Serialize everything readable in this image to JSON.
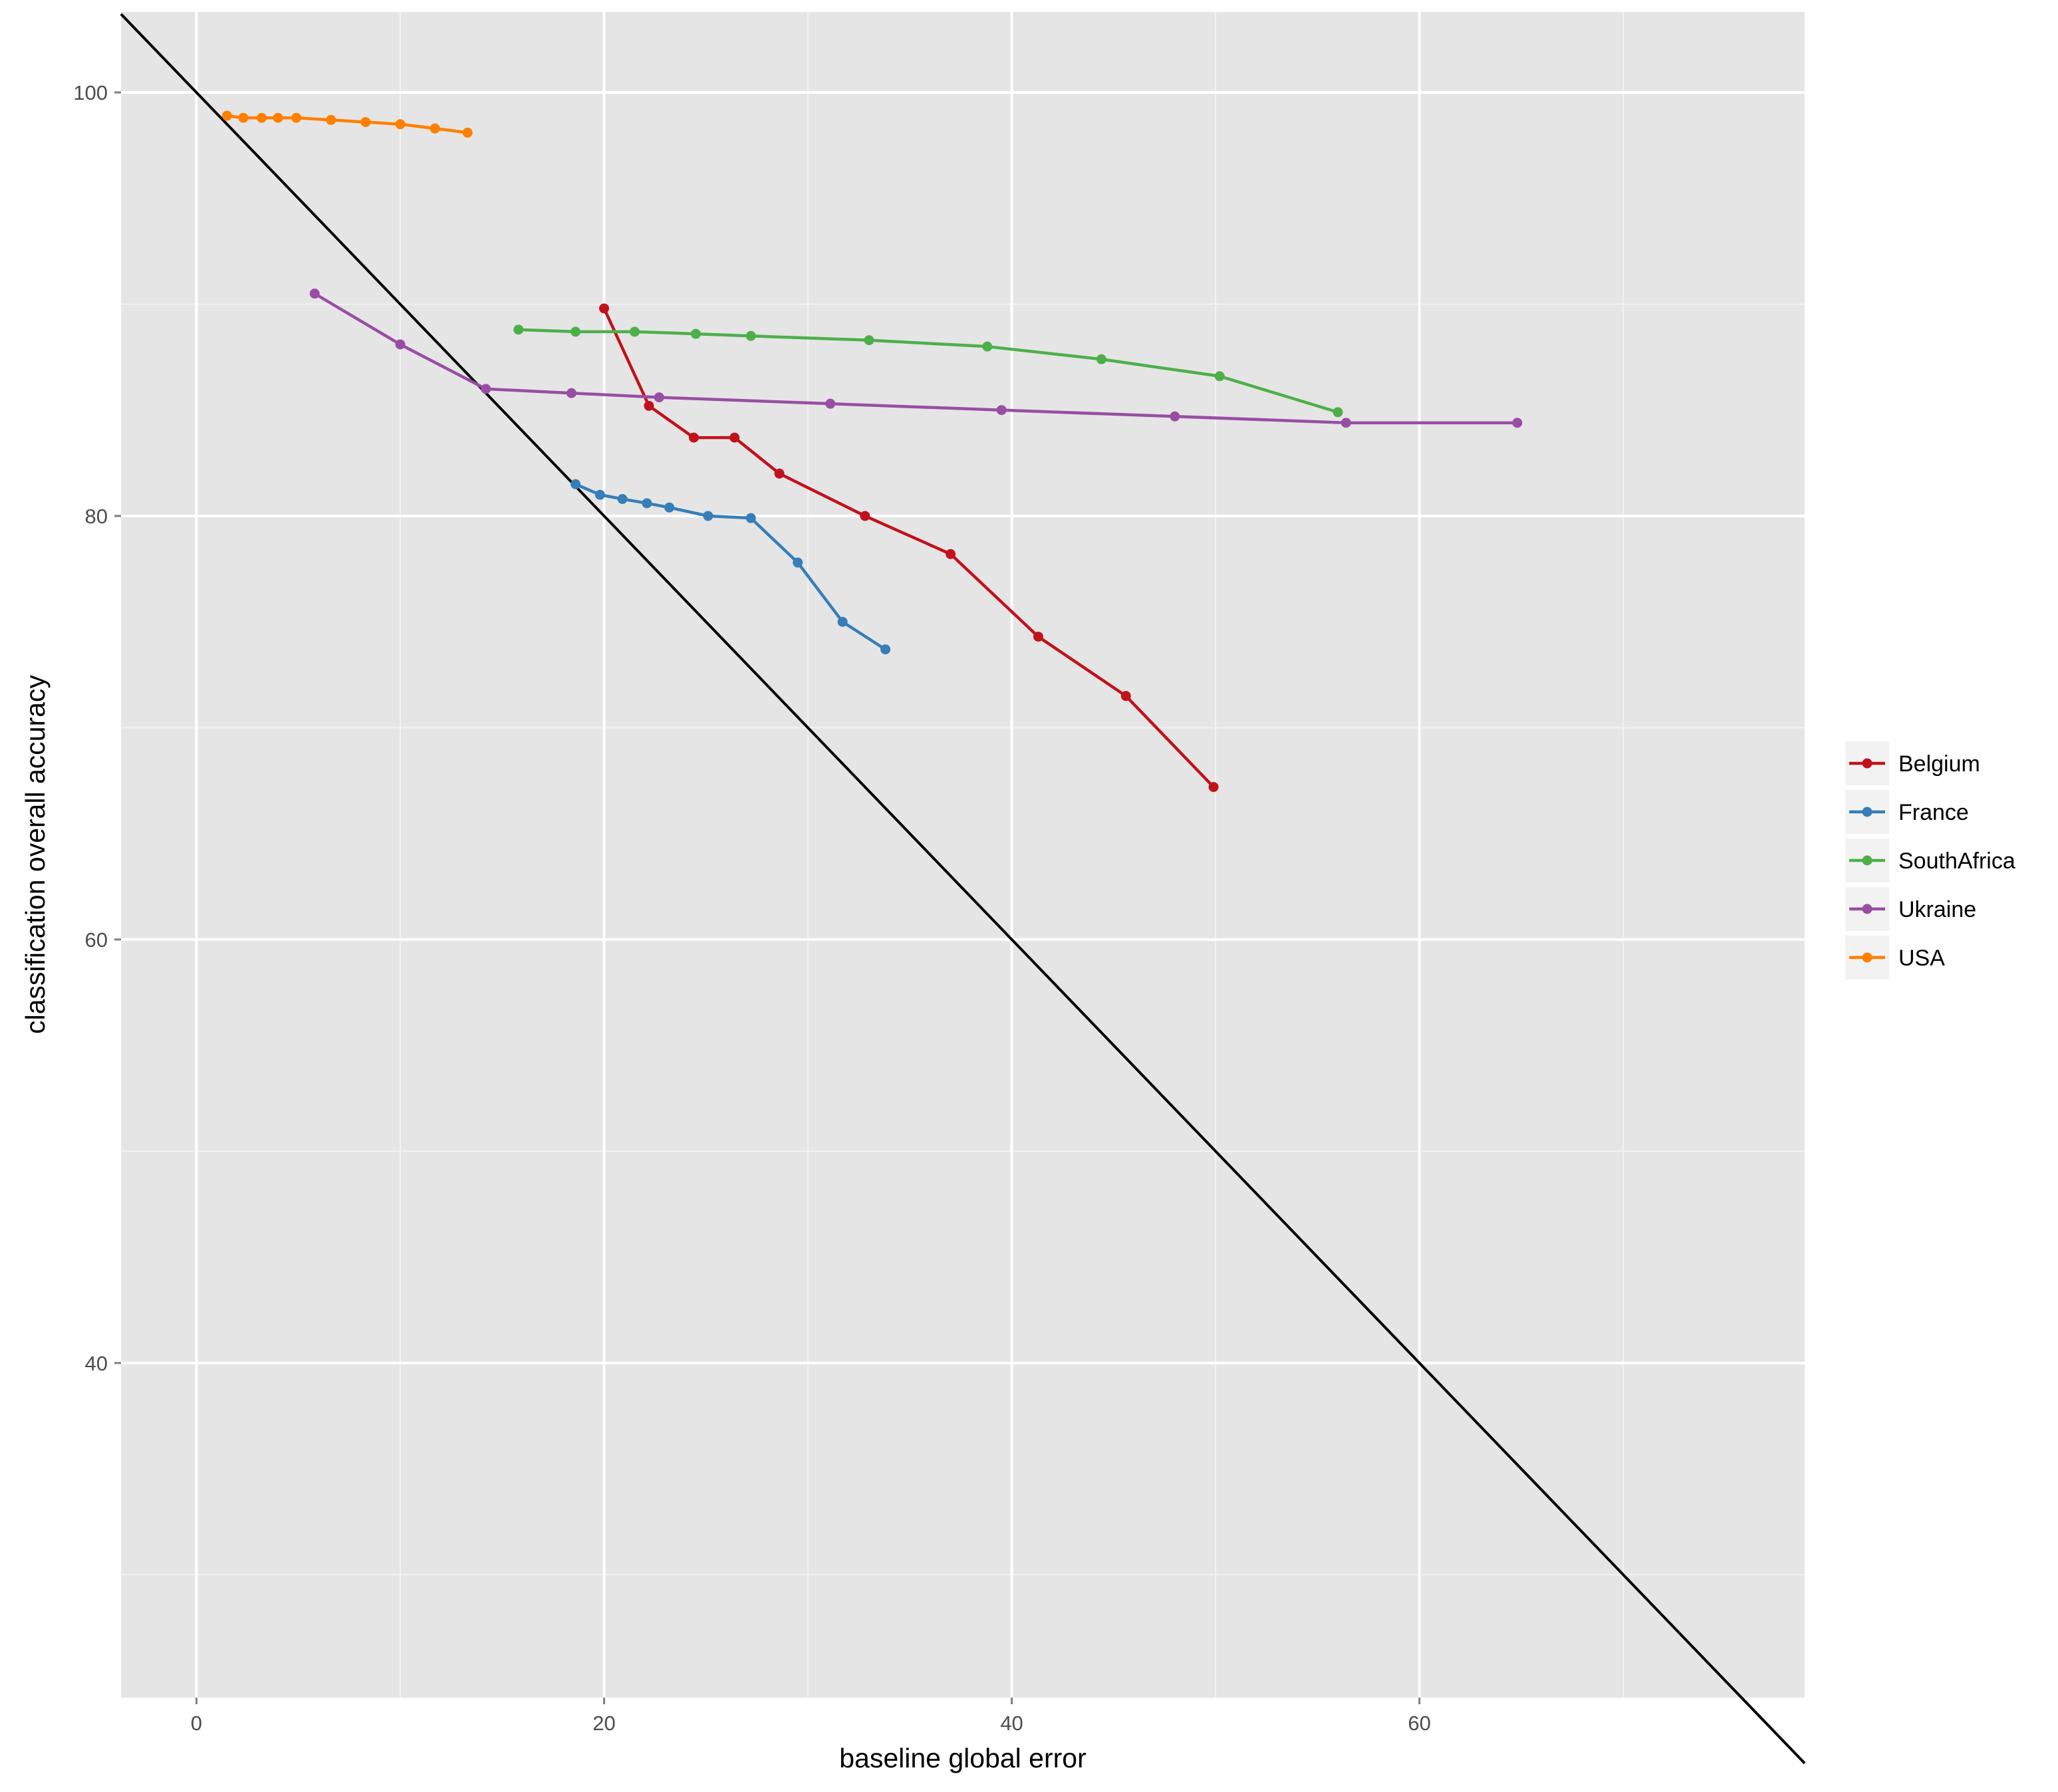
{
  "chart_data": {
    "type": "line",
    "xlabel": "baseline global error",
    "ylabel": "classification overall accuracy",
    "xlim": [
      -3.7,
      78.9
    ],
    "ylim": [
      24.2,
      103.8
    ],
    "x_ticks": [
      0,
      20,
      40,
      60
    ],
    "y_ticks": [
      40,
      60,
      80,
      100
    ],
    "grid": true,
    "legend_position": "right",
    "reference_line": {
      "x": [
        -3.7,
        78.9
      ],
      "y": [
        103.7,
        21.1
      ],
      "color": "#000000"
    },
    "series": [
      {
        "name": "Belgium",
        "color": "#C1121C",
        "x": [
          20.0,
          22.2,
          24.4,
          26.4,
          28.6,
          32.8,
          37.0,
          41.3,
          45.6,
          49.9
        ],
        "y": [
          89.8,
          85.2,
          83.7,
          83.7,
          82.0,
          80.0,
          78.2,
          74.3,
          71.5,
          67.2
        ]
      },
      {
        "name": "France",
        "color": "#377EB8",
        "x": [
          18.6,
          19.8,
          20.9,
          22.1,
          23.2,
          25.1,
          27.2,
          29.5,
          31.7,
          33.8
        ],
        "y": [
          81.5,
          81.0,
          80.8,
          80.6,
          80.4,
          80.0,
          79.9,
          77.8,
          75.0,
          73.7
        ]
      },
      {
        "name": "SouthAfrica",
        "color": "#4DAF4A",
        "x": [
          15.8,
          18.6,
          21.5,
          24.5,
          27.2,
          33.0,
          38.8,
          44.4,
          50.2,
          56.0
        ],
        "y": [
          88.8,
          88.7,
          88.7,
          88.6,
          88.5,
          88.3,
          88.0,
          87.4,
          86.6,
          84.9
        ]
      },
      {
        "name": "Ukraine",
        "color": "#984EA3",
        "x": [
          5.8,
          10.0,
          14.2,
          18.4,
          22.7,
          31.1,
          39.5,
          48.0,
          56.4,
          64.8
        ],
        "y": [
          90.5,
          88.1,
          86.0,
          85.8,
          85.6,
          85.3,
          85.0,
          84.7,
          84.4,
          84.4
        ]
      },
      {
        "name": "USA",
        "color": "#FF7F00",
        "x": [
          1.5,
          2.3,
          3.2,
          4.0,
          4.9,
          6.6,
          8.3,
          10.0,
          11.7,
          13.3
        ],
        "y": [
          98.9,
          98.8,
          98.8,
          98.8,
          98.8,
          98.7,
          98.6,
          98.5,
          98.3,
          98.1
        ]
      }
    ]
  }
}
